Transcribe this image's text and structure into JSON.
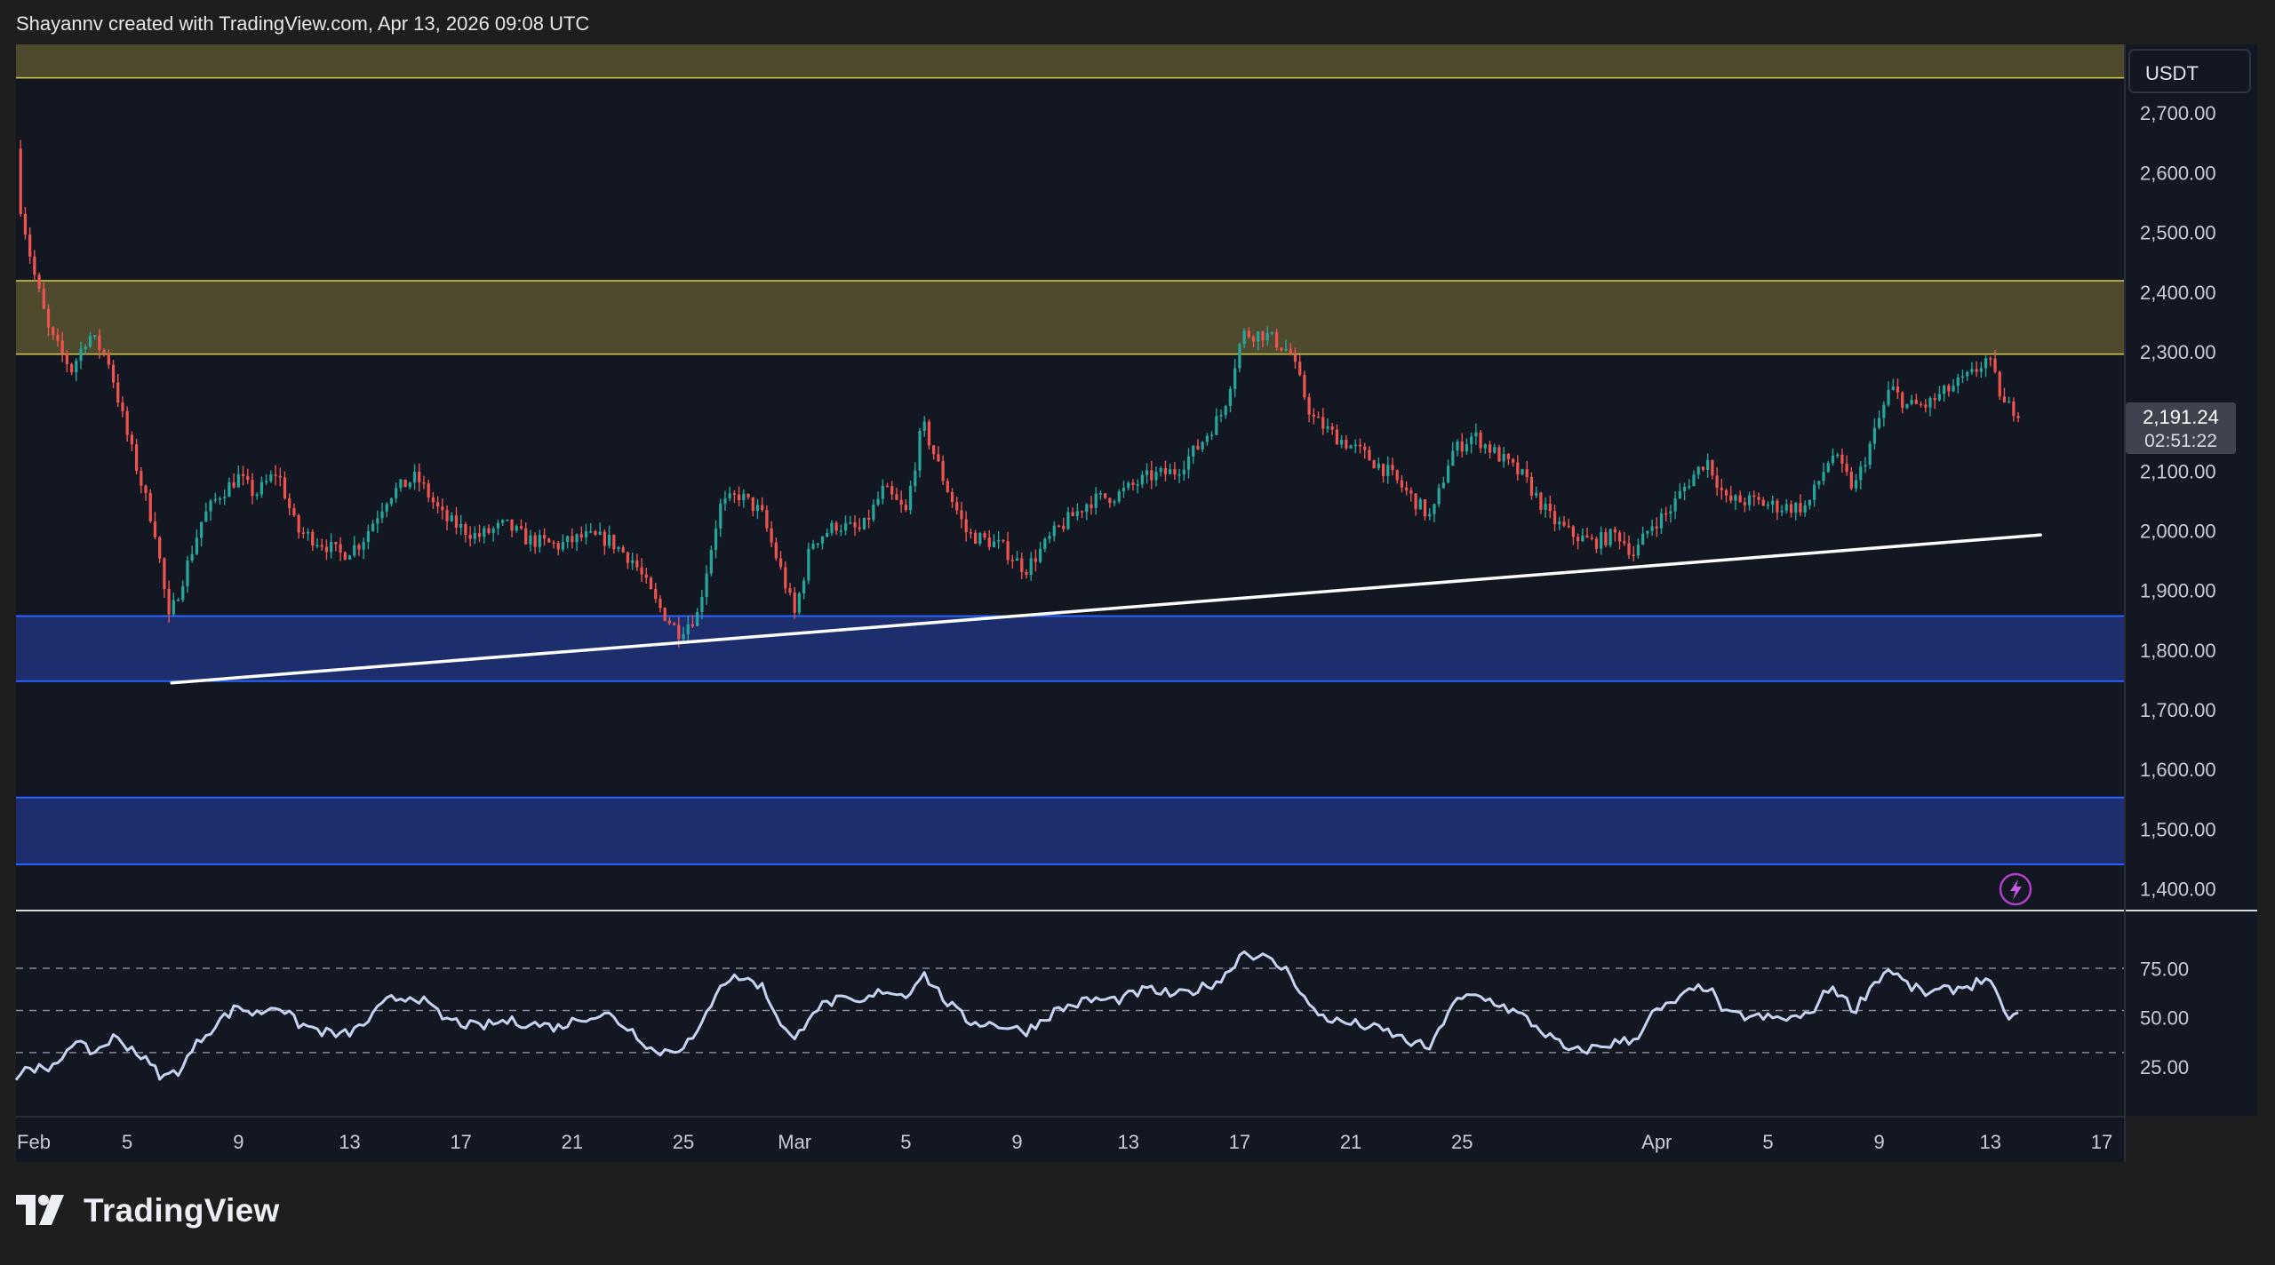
{
  "attribution": "Shayannv created with TradingView.com, Apr 13, 2026 09:08 UTC",
  "brand": {
    "name": "TradingView",
    "logo_icon": "tradingview-logo-icon"
  },
  "colors": {
    "background": "#131722",
    "bull": "#26a69a",
    "bear": "#ef5350",
    "supply_zone": "#4e4a2d",
    "supply_line": "#d8cd4a",
    "demand_zone": "#1c2e6e",
    "demand_line": "#2962ff",
    "trendline": "#ffffff",
    "rsi_line": "#c5d3f2"
  },
  "chart_data": {
    "type": "candlestick",
    "currency": "USDT",
    "y_ticks": [
      "2,700.00",
      "2,600.00",
      "2,500.00",
      "2,400.00",
      "2,300.00",
      "2,200.00",
      "2,100.00",
      "2,000.00",
      "1,900.00",
      "1,800.00",
      "1,700.00",
      "1,600.00",
      "1,500.00",
      "1,400.00"
    ],
    "ylim": [
      1365,
      2815
    ],
    "x_ticks": [
      "Feb",
      "5",
      "9",
      "13",
      "17",
      "21",
      "25",
      "Mar",
      "5",
      "9",
      "13",
      "17",
      "21",
      "25",
      "Apr",
      "5",
      "9",
      "13",
      "17"
    ],
    "x_tick_days": [
      0,
      4,
      8,
      12,
      16,
      20,
      24,
      28,
      32,
      36,
      40,
      44,
      48,
      52,
      59,
      63,
      67,
      71,
      75
    ],
    "xlim": [
      0,
      75.8
    ],
    "last_price": {
      "value": "2,191.24",
      "countdown": "02:51:22"
    },
    "price_path": [
      [
        0,
        2640
      ],
      [
        0.1,
        2560
      ],
      [
        0.6,
        2440
      ],
      [
        1.2,
        2330
      ],
      [
        2,
        2270
      ],
      [
        2.6,
        2330
      ],
      [
        3.3,
        2290
      ],
      [
        4,
        2160
      ],
      [
        5,
        2000
      ],
      [
        5.5,
        1850
      ],
      [
        6,
        1920
      ],
      [
        6.7,
        2020
      ],
      [
        7.3,
        2060
      ],
      [
        8,
        2090
      ],
      [
        8.6,
        2060
      ],
      [
        9.4,
        2100
      ],
      [
        10.1,
        2000
      ],
      [
        11,
        1980
      ],
      [
        11.7,
        1960
      ],
      [
        12.4,
        1980
      ],
      [
        13.4,
        2060
      ],
      [
        14.4,
        2090
      ],
      [
        15.4,
        2020
      ],
      [
        16.6,
        1990
      ],
      [
        17.6,
        2010
      ],
      [
        18.4,
        1985
      ],
      [
        19.5,
        1975
      ],
      [
        20.4,
        1990
      ],
      [
        21.3,
        1985
      ],
      [
        22.2,
        1950
      ],
      [
        23,
        1880
      ],
      [
        23.8,
        1830
      ],
      [
        24.5,
        1860
      ],
      [
        25.3,
        2040
      ],
      [
        26,
        2060
      ],
      [
        26.8,
        2030
      ],
      [
        27.6,
        1920
      ],
      [
        28,
        1860
      ],
      [
        28.6,
        1980
      ],
      [
        29.5,
        2010
      ],
      [
        30.4,
        2000
      ],
      [
        31.2,
        2070
      ],
      [
        32,
        2030
      ],
      [
        32.6,
        2180
      ],
      [
        33.4,
        2080
      ],
      [
        34.2,
        1995
      ],
      [
        35.4,
        1975
      ],
      [
        36.3,
        1935
      ],
      [
        37.4,
        2000
      ],
      [
        38.6,
        2050
      ],
      [
        39.6,
        2060
      ],
      [
        40.7,
        2090
      ],
      [
        41.7,
        2100
      ],
      [
        42.5,
        2140
      ],
      [
        43.4,
        2200
      ],
      [
        44.1,
        2330
      ],
      [
        44.9,
        2330
      ],
      [
        45.8,
        2300
      ],
      [
        46.6,
        2190
      ],
      [
        47.4,
        2160
      ],
      [
        48.4,
        2130
      ],
      [
        49.3,
        2100
      ],
      [
        50.1,
        2060
      ],
      [
        50.9,
        2020
      ],
      [
        51.6,
        2130
      ],
      [
        52.4,
        2160
      ],
      [
        53.2,
        2130
      ],
      [
        54.2,
        2090
      ],
      [
        55.2,
        2020
      ],
      [
        55.9,
        1995
      ],
      [
        56.7,
        1980
      ],
      [
        57.6,
        1995
      ],
      [
        58.2,
        1960
      ],
      [
        58.8,
        2010
      ],
      [
        59.4,
        2030
      ],
      [
        60.1,
        2080
      ],
      [
        60.8,
        2120
      ],
      [
        61.5,
        2050
      ],
      [
        62.4,
        2050
      ],
      [
        63.4,
        2040
      ],
      [
        64.4,
        2040
      ],
      [
        65.3,
        2130
      ],
      [
        66.1,
        2070
      ],
      [
        66.8,
        2160
      ],
      [
        67.4,
        2240
      ],
      [
        68,
        2210
      ],
      [
        68.7,
        2210
      ],
      [
        69.6,
        2240
      ],
      [
        70.3,
        2260
      ],
      [
        70.9,
        2290
      ],
      [
        71.5,
        2210
      ],
      [
        72.1,
        2200
      ]
    ],
    "trendline": [
      [
        5.6,
        1745
      ],
      [
        72.8,
        1993
      ]
    ],
    "supply_zones": [
      [
        2759,
        2815
      ],
      [
        2296,
        2419
      ]
    ],
    "demand_zones": [
      [
        1748,
        1857
      ],
      [
        1441,
        1553
      ]
    ],
    "rsi": {
      "y_ticks": [
        "75.00",
        "50.00",
        "25.00"
      ],
      "levels": [
        70,
        50,
        30
      ],
      "ylim": [
        0,
        97
      ],
      "path": [
        [
          0,
          18
        ],
        [
          0.5,
          24
        ],
        [
          1.2,
          20
        ],
        [
          2,
          35
        ],
        [
          2.8,
          30
        ],
        [
          3.5,
          37
        ],
        [
          4.2,
          32
        ],
        [
          5.3,
          18
        ],
        [
          5.9,
          22
        ],
        [
          6.6,
          36
        ],
        [
          7.3,
          45
        ],
        [
          8,
          52
        ],
        [
          8.6,
          48
        ],
        [
          9.4,
          53
        ],
        [
          10.1,
          44
        ],
        [
          11,
          40
        ],
        [
          11.7,
          38
        ],
        [
          12.4,
          42
        ],
        [
          13.4,
          55
        ],
        [
          14.4,
          57
        ],
        [
          15.4,
          46
        ],
        [
          16.6,
          42
        ],
        [
          17.6,
          45
        ],
        [
          18.4,
          44
        ],
        [
          19.5,
          42
        ],
        [
          20.4,
          47
        ],
        [
          21.3,
          48
        ],
        [
          22.2,
          40
        ],
        [
          23,
          30
        ],
        [
          23.8,
          32
        ],
        [
          24.5,
          38
        ],
        [
          25.3,
          63
        ],
        [
          26,
          66
        ],
        [
          26.8,
          62
        ],
        [
          27.6,
          42
        ],
        [
          28,
          35
        ],
        [
          28.6,
          50
        ],
        [
          29.5,
          55
        ],
        [
          30.4,
          53
        ],
        [
          31.2,
          60
        ],
        [
          32,
          57
        ],
        [
          32.6,
          68
        ],
        [
          33.4,
          55
        ],
        [
          34.2,
          45
        ],
        [
          35.4,
          43
        ],
        [
          36.3,
          40
        ],
        [
          37.4,
          50
        ],
        [
          38.6,
          55
        ],
        [
          39.6,
          55
        ],
        [
          40.7,
          60
        ],
        [
          41.7,
          57
        ],
        [
          42.5,
          60
        ],
        [
          43.4,
          65
        ],
        [
          44.1,
          78
        ],
        [
          44.9,
          75
        ],
        [
          45.8,
          68
        ],
        [
          46.6,
          50
        ],
        [
          47.4,
          45
        ],
        [
          48.4,
          43
        ],
        [
          49.3,
          40
        ],
        [
          50.1,
          35
        ],
        [
          50.9,
          32
        ],
        [
          51.6,
          53
        ],
        [
          52.4,
          57
        ],
        [
          53.2,
          54
        ],
        [
          54.2,
          47
        ],
        [
          55.2,
          37
        ],
        [
          55.9,
          30
        ],
        [
          56.7,
          32
        ],
        [
          57.6,
          35
        ],
        [
          58.2,
          36
        ],
        [
          58.8,
          48
        ],
        [
          59.4,
          52
        ],
        [
          60.1,
          58
        ],
        [
          60.8,
          62
        ],
        [
          61.5,
          48
        ],
        [
          62.4,
          47
        ],
        [
          63.4,
          46
        ],
        [
          64.4,
          47
        ],
        [
          65.3,
          62
        ],
        [
          66.1,
          50
        ],
        [
          66.8,
          63
        ],
        [
          67.4,
          70
        ],
        [
          68,
          62
        ],
        [
          68.7,
          58
        ],
        [
          69.6,
          60
        ],
        [
          70.3,
          62
        ],
        [
          70.9,
          66
        ],
        [
          71.5,
          48
        ],
        [
          72.1,
          47
        ]
      ]
    }
  }
}
